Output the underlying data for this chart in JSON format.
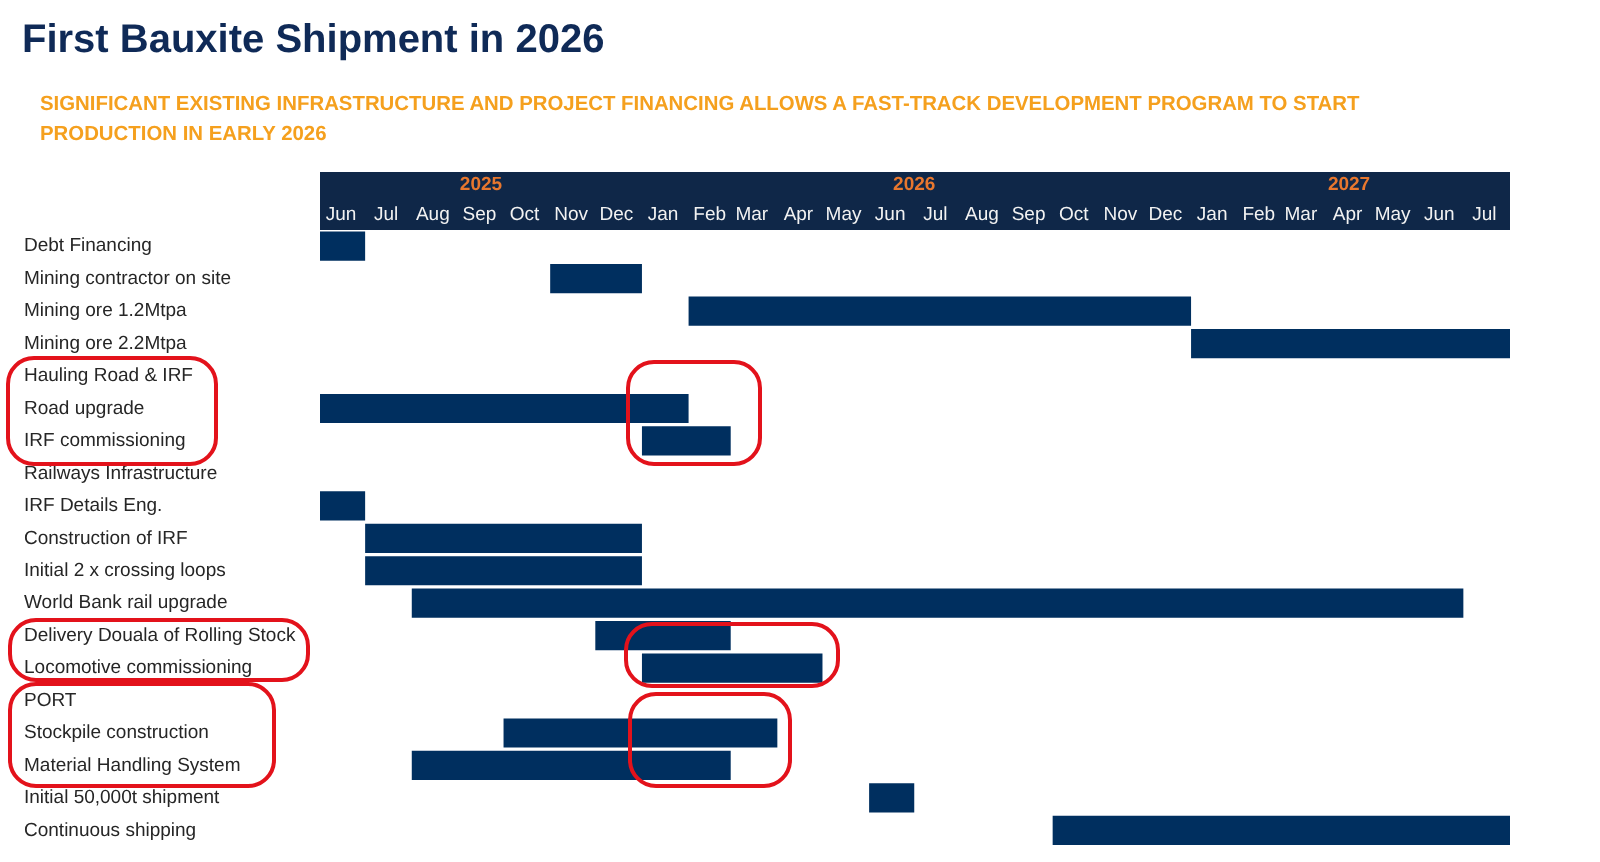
{
  "chart_data": {
    "type": "bar",
    "title": "First Bauxite Shipment in 2026",
    "subtitle": "SIGNIFICANT EXISTING INFRASTRUCTURE AND PROJECT FINANCING ALLOWS A FAST-TRACK DEVELOPMENT PROGRAM TO START PRODUCTION IN EARLY 2026",
    "orientation": "horizontal",
    "categories": [
      "Debt Financing",
      "Mining contractor on site",
      "Mining ore 1.2Mtpa",
      "Mining ore 2.2Mtpa",
      "Hauling Road & IRF",
      "Road upgrade",
      "IRF commissioning",
      "Railways Infrastructure",
      "IRF Details Eng.",
      "Construction of IRF",
      "Initial 2 x crossing loops",
      "World Bank rail upgrade",
      "Delivery Douala of Rolling Stock",
      "Locomotive commissioning",
      "PORT",
      "Stockpile construction",
      "Material Handling System",
      "Initial 50,000t shipment",
      "Continuous shipping"
    ],
    "base": [
      20240,
      20393,
      20485,
      20819,
      null,
      20240,
      20454,
      null,
      20240,
      20270,
      20270,
      20301,
      20423,
      20454,
      null,
      20362,
      20301,
      20605,
      20727
    ],
    "values": [
      30,
      61,
      334,
      212,
      null,
      245,
      59,
      null,
      30,
      184,
      184,
      699,
      90,
      120,
      null,
      182,
      212,
      30,
      304
    ],
    "color": "#002f5f",
    "xlim": [
      "2025-06-01",
      "2027-08-01"
    ],
    "xticks": [
      {
        "value": "2025-06-15",
        "label": "Jun"
      },
      {
        "value": "2025-07-15",
        "label": "Jul"
      },
      {
        "value": "2025-08-15",
        "label": "Aug"
      },
      {
        "value": "2025-09-15",
        "label": "Sep"
      },
      {
        "value": "2025-10-15",
        "label": "Oct"
      },
      {
        "value": "2025-11-15",
        "label": "Nov"
      },
      {
        "value": "2025-12-15",
        "label": "Dec"
      },
      {
        "value": "2026-01-15",
        "label": "Jan"
      },
      {
        "value": "2026-02-15",
        "label": "Feb"
      },
      {
        "value": "2026-03-15",
        "label": "Mar"
      },
      {
        "value": "2026-04-15",
        "label": "Apr"
      },
      {
        "value": "2026-05-15",
        "label": "May"
      },
      {
        "value": "2026-06-15",
        "label": "Jun"
      },
      {
        "value": "2026-07-15",
        "label": "Jul"
      },
      {
        "value": "2026-08-15",
        "label": "Aug"
      },
      {
        "value": "2026-09-15",
        "label": "Sep"
      },
      {
        "value": "2026-10-15",
        "label": "Oct"
      },
      {
        "value": "2026-11-15",
        "label": "Nov"
      },
      {
        "value": "2026-12-15",
        "label": "Dec"
      },
      {
        "value": "2027-01-15",
        "label": "Jan"
      },
      {
        "value": "2027-02-15",
        "label": "Feb"
      },
      {
        "value": "2027-03-15",
        "label": "Mar"
      },
      {
        "value": "2027-04-15",
        "label": "Apr"
      },
      {
        "value": "2027-05-15",
        "label": "May"
      },
      {
        "value": "2027-06-15",
        "label": "Jun"
      },
      {
        "value": "2027-07-15",
        "label": "Jul"
      }
    ],
    "x2lim": [
      "2025-06-01",
      "2027-08-01"
    ],
    "x2ticks": [
      {
        "value": "2025-09-16",
        "label": "2025"
      },
      {
        "value": "2026-07-01",
        "label": "2026"
      },
      {
        "value": "2027-04-16",
        "label": "2027"
      }
    ]
  }
}
